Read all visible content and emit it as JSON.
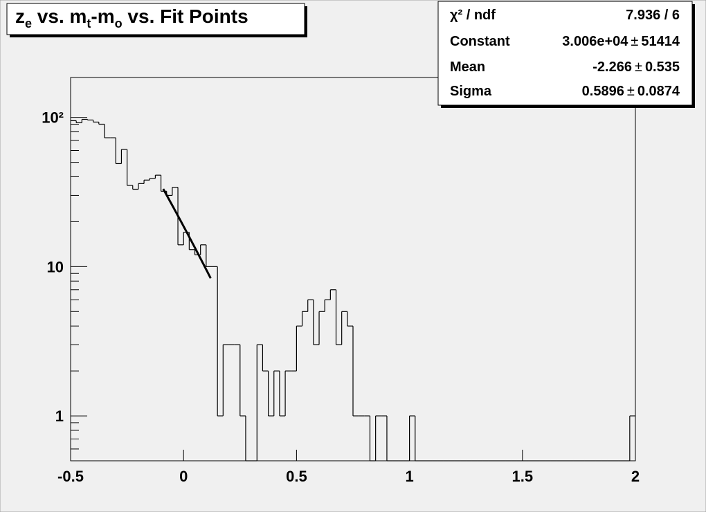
{
  "chart_data": {
    "type": "histogram",
    "title": [
      "z",
      "e",
      " vs. m",
      "t",
      "-m",
      "o",
      " vs. Fit Points"
    ],
    "bins": [
      -0.5,
      -0.475,
      -0.45,
      -0.425,
      -0.4,
      -0.375,
      -0.35,
      -0.325,
      -0.3,
      -0.275,
      -0.25,
      -0.225,
      -0.2,
      -0.175,
      -0.15,
      -0.125,
      -0.1,
      -0.075,
      -0.05,
      -0.025,
      0,
      0.025,
      0.05,
      0.075,
      0.1,
      0.125,
      0.15,
      0.175,
      0.2,
      0.225,
      0.25,
      0.275,
      0.3,
      0.325,
      0.35,
      0.375,
      0.4,
      0.425,
      0.45,
      0.475,
      0.5,
      0.525,
      0.55,
      0.575,
      0.6,
      0.625,
      0.65,
      0.675,
      0.7,
      0.725,
      0.75,
      0.775,
      0.8,
      0.825,
      0.85,
      0.875,
      0.9,
      0.925,
      0.95,
      0.975,
      1,
      1.025,
      1.05,
      1.075,
      1.1,
      1.125,
      1.15,
      1.175,
      1.2,
      1.225,
      1.25,
      1.275,
      1.3,
      1.325,
      1.35,
      1.375,
      1.4,
      1.425,
      1.45,
      1.475,
      1.5,
      1.525,
      1.55,
      1.575,
      1.6,
      1.625,
      1.65,
      1.675,
      1.7,
      1.725,
      1.75,
      1.775,
      1.8,
      1.825,
      1.85,
      1.875,
      1.9,
      1.925,
      1.95,
      1.975,
      2
    ],
    "values": [
      95,
      92,
      97,
      96,
      93,
      90,
      73,
      73,
      49,
      61,
      35,
      33,
      36,
      38,
      39,
      41,
      32,
      30,
      34,
      14,
      17,
      13,
      12,
      14,
      10,
      10,
      1,
      3,
      3,
      3,
      1,
      0,
      0,
      3,
      2,
      1,
      2,
      1,
      2,
      2,
      4,
      5,
      6,
      3,
      5,
      6,
      7,
      3,
      5,
      4,
      1,
      1,
      1,
      0,
      1,
      1,
      0,
      0,
      0,
      0,
      1,
      0,
      0,
      0,
      0,
      0,
      0,
      0,
      0,
      0,
      0,
      0,
      0,
      0,
      0,
      0,
      0,
      0,
      0,
      0,
      0,
      0,
      0,
      0,
      0,
      0,
      0,
      0,
      0,
      0,
      0,
      0,
      0,
      0,
      0,
      0,
      0,
      0,
      0,
      1
    ],
    "color": "#000000",
    "fit_color": "#000000",
    "fit_range": [
      -0.09,
      0.12
    ],
    "xlim": [
      -0.5,
      2
    ],
    "xticks": [
      -0.5,
      0,
      0.5,
      1,
      1.5,
      2
    ],
    "ylim": [
      0.5,
      185
    ],
    "log_y": true,
    "yticks": [
      1,
      10,
      {
        "value": 100,
        "label": "10²"
      }
    ],
    "yminor_ticks": [
      0.6,
      0.7,
      0.8,
      0.9,
      2,
      3,
      4,
      5,
      6,
      7,
      8,
      9,
      20,
      30,
      40,
      50,
      60,
      70,
      80,
      90
    ],
    "stats_separator": "±",
    "stats": [
      {
        "name": "χ² / ndf",
        "value": "7.936 / 6"
      },
      {
        "name": "Constant",
        "value": 30060,
        "value_label": "3.006e+04",
        "error": 51414
      },
      {
        "name": "Mean",
        "value": -2.266,
        "error": 0.535
      },
      {
        "name": "Sigma",
        "value": 0.5896,
        "error": 0.0874
      }
    ]
  }
}
